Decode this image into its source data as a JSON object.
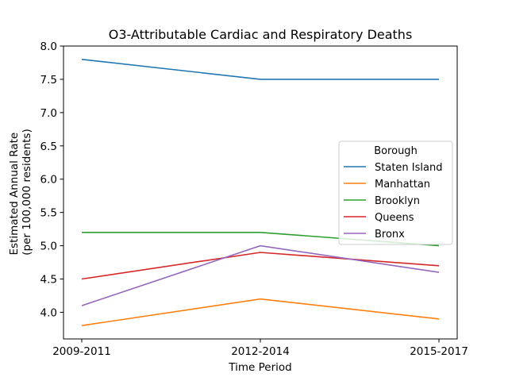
{
  "chart_data": {
    "type": "line",
    "title": "O3-Attributable Cardiac and Respiratory Deaths",
    "xlabel": "Time Period",
    "ylabel_line1": "Estimated Annual Rate",
    "ylabel_line2": "(per 100,000 residents)",
    "categories": [
      "2009-2011",
      "2012-2014",
      "2015-2017"
    ],
    "ylim": [
      3.6,
      8.0
    ],
    "yticks": [
      "4.0",
      "4.5",
      "5.0",
      "5.5",
      "6.0",
      "6.5",
      "7.0",
      "7.5",
      "8.0"
    ],
    "legend": {
      "title": "Borough",
      "placement": "center-right"
    },
    "grid": false,
    "series": [
      {
        "name": "Staten Island",
        "color": "#1f77b4",
        "values": [
          7.8,
          7.5,
          7.5
        ]
      },
      {
        "name": "Manhattan",
        "color": "#ff7f0e",
        "values": [
          3.8,
          4.2,
          3.9
        ]
      },
      {
        "name": "Brooklyn",
        "color": "#2ca02c",
        "values": [
          5.2,
          5.2,
          5.0
        ]
      },
      {
        "name": "Queens",
        "color": "#d62728",
        "values": [
          4.5,
          4.9,
          4.7
        ]
      },
      {
        "name": "Bronx",
        "color": "#9467bd",
        "values": [
          4.1,
          5.0,
          4.6
        ]
      }
    ]
  }
}
